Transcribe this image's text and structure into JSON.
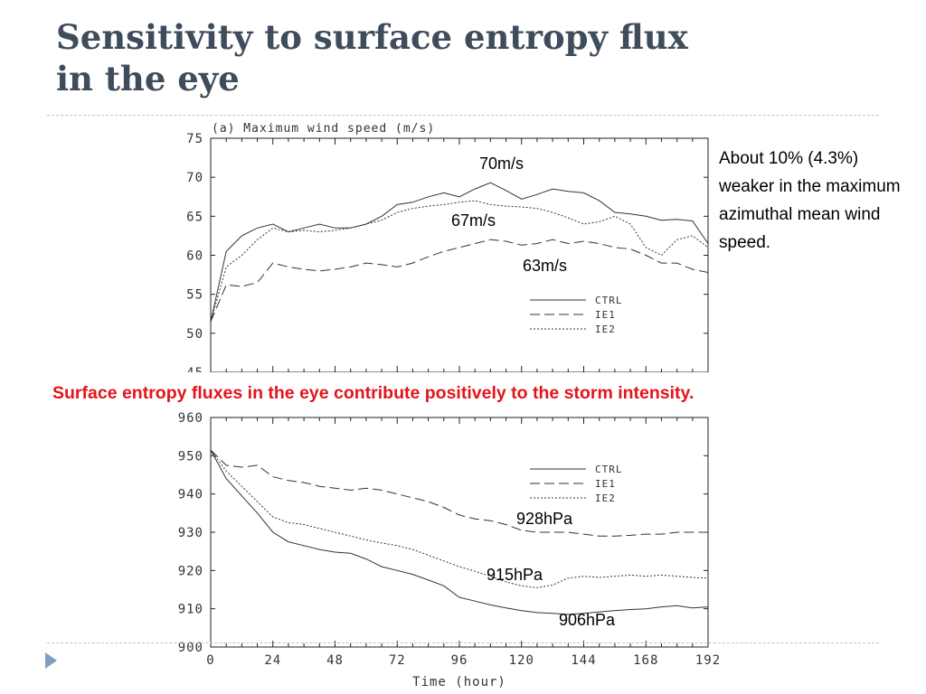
{
  "slide": {
    "title_line1": "Sensitivity to surface entropy flux",
    "title_line2": "in the eye",
    "note": "About 10% (4.3%) weaker in the maximum azimuthal mean wind speed.",
    "caption": "Surface entropy fluxes in the eye contribute positively to the storm intensity."
  },
  "chart_data": [
    {
      "type": "line",
      "title": "(a) Maximum wind speed (m/s)",
      "xlabel": "",
      "ylabel": "",
      "x": [
        0,
        6,
        12,
        18,
        24,
        30,
        36,
        42,
        48,
        54,
        60,
        66,
        72,
        78,
        84,
        90,
        96,
        102,
        108,
        114,
        120,
        126,
        132,
        138,
        144,
        150,
        156,
        162,
        168,
        174,
        180,
        186,
        192
      ],
      "xlim": [
        0,
        192
      ],
      "ylim": [
        45,
        75
      ],
      "yticks": [
        45,
        50,
        55,
        60,
        65,
        70,
        75
      ],
      "series": [
        {
          "name": "CTRL",
          "dash": "solid",
          "values": [
            51.5,
            60.5,
            62.5,
            63.5,
            64,
            63,
            63.5,
            64,
            63.5,
            63.5,
            64,
            65,
            66.5,
            66.8,
            67.5,
            68,
            67.5,
            68.5,
            69.3,
            68.3,
            67.2,
            67.8,
            68.5,
            68.2,
            68,
            67,
            65.5,
            65.3,
            65,
            64.5,
            64.6,
            64.4,
            61.5
          ]
        },
        {
          "name": "IE1",
          "dash": "long-dash",
          "values": [
            51.5,
            56.2,
            56,
            56.5,
            59,
            58.5,
            58.2,
            58,
            58.2,
            58.5,
            59,
            58.8,
            58.5,
            59,
            59.8,
            60.5,
            61,
            61.5,
            62,
            61.8,
            61.3,
            61.5,
            62,
            61.5,
            61.8,
            61.5,
            61,
            60.8,
            60,
            59,
            59,
            58.2,
            57.8
          ]
        },
        {
          "name": "IE2",
          "dash": "dotted",
          "values": [
            51.5,
            58.5,
            60,
            62,
            63.5,
            63,
            63.2,
            63,
            63.2,
            63.5,
            64,
            64.5,
            65.5,
            66,
            66.3,
            66.5,
            66.8,
            67,
            66.5,
            66.3,
            66.2,
            66,
            65.5,
            64.8,
            64,
            64.3,
            65,
            64,
            61,
            60,
            62,
            62.5,
            61
          ]
        }
      ],
      "legend": "inside-right",
      "annotations": [
        "70m/s",
        "67m/s",
        "63m/s"
      ]
    },
    {
      "type": "line",
      "title": "",
      "xlabel": "Time (hour)",
      "ylabel": "",
      "x": [
        0,
        6,
        12,
        18,
        24,
        30,
        36,
        42,
        48,
        54,
        60,
        66,
        72,
        78,
        84,
        90,
        96,
        102,
        108,
        114,
        120,
        126,
        132,
        138,
        144,
        150,
        156,
        162,
        168,
        174,
        180,
        186,
        192
      ],
      "xlim": [
        0,
        192
      ],
      "ylim": [
        900,
        960
      ],
      "xticks": [
        0,
        24,
        48,
        72,
        96,
        120,
        144,
        168,
        192
      ],
      "yticks": [
        900,
        910,
        920,
        930,
        940,
        950,
        960
      ],
      "series": [
        {
          "name": "CTRL",
          "dash": "solid",
          "values": [
            951.5,
            944,
            939.5,
            935,
            930,
            927.5,
            926.5,
            925.5,
            924.8,
            924.5,
            923,
            921,
            920,
            919,
            917.5,
            916,
            913,
            912,
            911,
            910.2,
            909.5,
            909,
            908.8,
            908.5,
            908.8,
            909.2,
            909.5,
            909.8,
            910,
            910.5,
            910.8,
            910.2,
            910.5
          ]
        },
        {
          "name": "IE1",
          "dash": "long-dash",
          "values": [
            951.5,
            947.5,
            947,
            947.5,
            944.5,
            943.5,
            943,
            942,
            941.5,
            941,
            941.5,
            941,
            940,
            939,
            938,
            936.5,
            934.5,
            933.5,
            933,
            932,
            930.5,
            930,
            930,
            930,
            929.5,
            929,
            929,
            929.2,
            929.5,
            929.5,
            930,
            930,
            930
          ]
        },
        {
          "name": "IE2",
          "dash": "dotted",
          "values": [
            951.5,
            946,
            942,
            938,
            934,
            932.5,
            932,
            931,
            930,
            929,
            928,
            927.2,
            926.5,
            925.5,
            924,
            922.5,
            921,
            919.8,
            918.5,
            917,
            916,
            915.5,
            916.2,
            918,
            918.5,
            918.2,
            918.5,
            918.8,
            918.5,
            918.8,
            918.5,
            918.2,
            918
          ]
        }
      ],
      "legend": "inside-right",
      "annotations": [
        "928hPa",
        "915hPa",
        "906hPa"
      ]
    }
  ]
}
